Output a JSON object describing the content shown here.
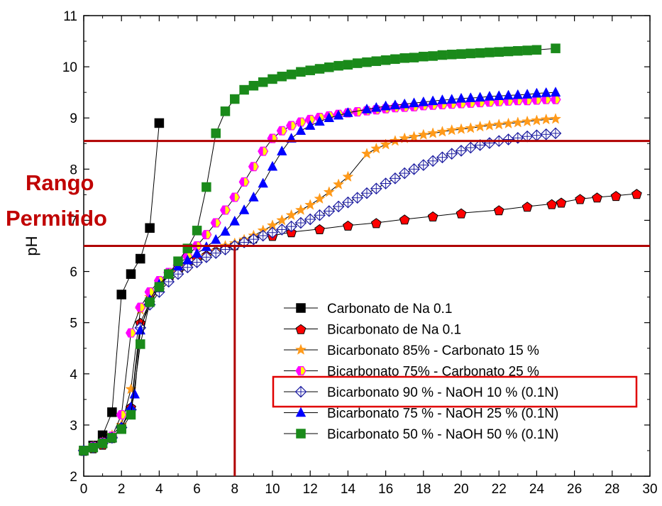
{
  "colors": {
    "range_lines": "#b00000",
    "range_text": "#c00000",
    "highlight_box": "#e00000"
  },
  "annotation": {
    "line1": "Rango",
    "line2": "Permitido"
  },
  "chart_data": {
    "type": "scatter",
    "title": "",
    "xlabel": "",
    "ylabel": "pH",
    "xlim": [
      0,
      30
    ],
    "ylim": [
      2,
      11
    ],
    "x_ticks": [
      "0",
      "2",
      "4",
      "6",
      "8",
      "10",
      "12",
      "14",
      "16",
      "18",
      "20",
      "22",
      "24",
      "26",
      "28",
      "30"
    ],
    "y_ticks": [
      "2",
      "3",
      "4",
      "5",
      "6",
      "7",
      "8",
      "9",
      "10",
      "11"
    ],
    "grid": false,
    "legend_position": "lower-right",
    "highlighted_series": "Bicarbonato 90 % - NaOH 10 % (0.1N)",
    "reference_lines": {
      "horizontal_y": [
        6.5,
        8.55
      ],
      "vertical_x": 8.0,
      "vertical_y_range": [
        2,
        6.5
      ]
    },
    "series": [
      {
        "name": "Carbonato de Na 0.1",
        "marker": "square-filled",
        "color": "#000000",
        "x": [
          0,
          0.5,
          1.0,
          1.5,
          2.0,
          2.5,
          3.0,
          3.5,
          4.0
        ],
        "y": [
          2.5,
          2.6,
          2.8,
          3.25,
          5.55,
          5.95,
          6.25,
          6.85,
          8.9
        ]
      },
      {
        "name": "Bicarbonato de Na 0.1",
        "marker": "pentagon-filled",
        "color": "#ff0000",
        "x": [
          0,
          0.5,
          1.0,
          1.5,
          2.0,
          2.5,
          3.0,
          3.5,
          4.0,
          4.5,
          5.0,
          5.5,
          6.0,
          6.5,
          7.0,
          7.5,
          8.0,
          8.5,
          9.0,
          10.0,
          11.0,
          12.5,
          14.0,
          15.5,
          17.0,
          18.5,
          20.0,
          22.0,
          23.5,
          24.8,
          25.3,
          26.3,
          27.2,
          28.2,
          29.3
        ],
        "y": [
          2.5,
          2.55,
          2.62,
          2.75,
          2.95,
          3.35,
          5.0,
          5.4,
          5.65,
          5.85,
          6.0,
          6.15,
          6.25,
          6.32,
          6.4,
          6.47,
          6.52,
          6.6,
          6.65,
          6.7,
          6.77,
          6.83,
          6.9,
          6.95,
          7.02,
          7.08,
          7.14,
          7.2,
          7.27,
          7.32,
          7.35,
          7.42,
          7.45,
          7.48,
          7.52
        ]
      },
      {
        "name": "Bicarbonato 85% - Carbonato 15 %",
        "marker": "star-filled",
        "color": "#ff9a1a",
        "x": [
          0,
          0.5,
          1.0,
          1.5,
          2.0,
          2.5,
          3.0,
          3.5,
          4.0,
          4.5,
          5.0,
          5.5,
          6.0,
          6.5,
          7.0,
          7.5,
          8.0,
          8.5,
          9.0,
          9.5,
          10.0,
          10.5,
          11.0,
          11.5,
          12.0,
          12.5,
          13.0,
          13.5,
          14.0,
          15.0,
          15.5,
          16.0,
          16.5,
          17.0,
          17.5,
          18.0,
          18.5,
          19.0,
          19.5,
          20.0,
          20.5,
          21.0,
          21.5,
          22.0,
          22.5,
          23.0,
          23.5,
          24.0,
          24.5,
          25.0
        ],
        "y": [
          2.5,
          2.58,
          2.66,
          2.8,
          3.0,
          3.7,
          5.25,
          5.5,
          5.7,
          5.85,
          5.98,
          6.1,
          6.2,
          6.3,
          6.4,
          6.5,
          6.55,
          6.62,
          6.7,
          6.8,
          6.9,
          7.0,
          7.1,
          7.2,
          7.3,
          7.42,
          7.55,
          7.7,
          7.85,
          8.3,
          8.4,
          8.48,
          8.55,
          8.6,
          8.63,
          8.67,
          8.7,
          8.73,
          8.76,
          8.78,
          8.8,
          8.83,
          8.85,
          8.87,
          8.89,
          8.91,
          8.93,
          8.95,
          8.97,
          8.98
        ]
      },
      {
        "name": "Bicarbonato 75% - Carbonato 25 %",
        "marker": "hexagon-half",
        "color": "#ff00ff",
        "color2": "#ffff00",
        "x": [
          0,
          0.5,
          1.0,
          1.5,
          2.0,
          2.5,
          3.0,
          3.5,
          4.0,
          4.5,
          5.0,
          5.5,
          6.0,
          6.5,
          7.0,
          7.5,
          8.0,
          8.5,
          9.0,
          9.5,
          10.0,
          10.5,
          11.0,
          11.5,
          12.0,
          12.5,
          13.0,
          13.5,
          14.0,
          14.5,
          15.0,
          15.5,
          16.0,
          16.5,
          17.0,
          17.5,
          18.0,
          18.5,
          19.0,
          19.5,
          20.0,
          20.5,
          21.0,
          21.5,
          22.0,
          22.5,
          23.0,
          23.5,
          24.0,
          24.5,
          25.0
        ],
        "y": [
          2.5,
          2.58,
          2.66,
          2.78,
          3.2,
          4.8,
          5.3,
          5.6,
          5.82,
          5.98,
          6.12,
          6.3,
          6.5,
          6.72,
          6.95,
          7.2,
          7.45,
          7.75,
          8.05,
          8.35,
          8.6,
          8.75,
          8.85,
          8.92,
          8.97,
          9.01,
          9.04,
          9.07,
          9.1,
          9.12,
          9.14,
          9.16,
          9.18,
          9.2,
          9.21,
          9.22,
          9.24,
          9.25,
          9.26,
          9.27,
          9.28,
          9.29,
          9.3,
          9.31,
          9.32,
          9.33,
          9.34,
          9.34,
          9.35,
          9.36,
          9.36
        ]
      },
      {
        "name": "Bicarbonato 90 % - NaOH 10 % (0.1N)",
        "marker": "diamond-cross-open",
        "color": "#1a1aa0",
        "x": [
          0,
          0.5,
          1.0,
          1.5,
          2.0,
          2.5,
          3.0,
          3.5,
          4.0,
          4.5,
          5.0,
          5.5,
          6.0,
          6.5,
          7.0,
          7.5,
          8.0,
          8.5,
          9.0,
          9.5,
          10.0,
          10.5,
          11.0,
          11.5,
          12.0,
          12.5,
          13.0,
          13.5,
          14.0,
          14.5,
          15.0,
          15.5,
          16.0,
          16.5,
          17.0,
          17.5,
          18.0,
          18.5,
          19.0,
          19.5,
          20.0,
          20.5,
          21.0,
          21.5,
          22.0,
          22.5,
          23.0,
          23.5,
          24.0,
          24.5,
          25.0
        ],
        "y": [
          2.5,
          2.56,
          2.64,
          2.75,
          2.95,
          3.3,
          4.9,
          5.35,
          5.6,
          5.8,
          5.95,
          6.08,
          6.18,
          6.28,
          6.36,
          6.43,
          6.5,
          6.57,
          6.63,
          6.7,
          6.76,
          6.82,
          6.88,
          6.95,
          7.02,
          7.1,
          7.18,
          7.27,
          7.35,
          7.44,
          7.53,
          7.62,
          7.72,
          7.82,
          7.92,
          8.0,
          8.08,
          8.16,
          8.23,
          8.3,
          8.36,
          8.42,
          8.47,
          8.51,
          8.55,
          8.58,
          8.61,
          8.64,
          8.66,
          8.68,
          8.7
        ]
      },
      {
        "name": "Bicarbonato 75 % - NaOH 25 % (0.1N)",
        "marker": "triangle-filled",
        "color": "#0000ff",
        "x": [
          0,
          0.5,
          1.0,
          1.5,
          2.0,
          2.5,
          2.7,
          3.0,
          3.5,
          4.0,
          4.5,
          5.0,
          5.5,
          6.0,
          6.5,
          7.0,
          7.5,
          8.0,
          8.5,
          9.0,
          9.5,
          10.0,
          10.5,
          11.0,
          11.5,
          12.0,
          12.5,
          13.0,
          13.5,
          14.0,
          15.0,
          15.5,
          16.0,
          16.5,
          17.0,
          17.5,
          18.0,
          18.5,
          19.0,
          19.5,
          20.0,
          20.5,
          21.0,
          21.5,
          22.0,
          22.5,
          23.0,
          23.5,
          24.0,
          24.5,
          25.0
        ],
        "y": [
          2.5,
          2.56,
          2.64,
          2.75,
          2.95,
          3.35,
          3.6,
          4.85,
          5.45,
          5.75,
          5.95,
          6.1,
          6.22,
          6.35,
          6.48,
          6.62,
          6.78,
          6.98,
          7.2,
          7.45,
          7.72,
          8.05,
          8.35,
          8.6,
          8.75,
          8.85,
          8.93,
          9.0,
          9.05,
          9.1,
          9.17,
          9.2,
          9.23,
          9.25,
          9.27,
          9.29,
          9.31,
          9.33,
          9.35,
          9.36,
          9.38,
          9.39,
          9.4,
          9.42,
          9.43,
          9.44,
          9.45,
          9.46,
          9.48,
          9.49,
          9.5
        ]
      },
      {
        "name": "Bicarbonato 50 % - NaOH 50 % (0.1N)",
        "marker": "square-filled",
        "color": "#1a8a1a",
        "x": [
          0,
          0.5,
          1.0,
          1.5,
          2.0,
          2.5,
          3.0,
          3.5,
          4.0,
          4.5,
          5.0,
          5.5,
          6.0,
          6.5,
          7.0,
          7.5,
          8.0,
          8.5,
          9.0,
          9.5,
          10.0,
          10.5,
          11.0,
          11.5,
          12.0,
          12.5,
          13.0,
          13.5,
          14.0,
          14.5,
          15.0,
          15.5,
          16.0,
          16.5,
          17.0,
          17.5,
          18.0,
          18.5,
          19.0,
          19.5,
          20.0,
          20.5,
          21.0,
          21.5,
          22.0,
          22.5,
          23.0,
          23.5,
          24.0,
          25.0
        ],
        "y": [
          2.5,
          2.56,
          2.64,
          2.75,
          2.92,
          3.2,
          4.58,
          5.4,
          5.7,
          5.95,
          6.2,
          6.45,
          6.8,
          7.65,
          8.7,
          9.13,
          9.37,
          9.55,
          9.63,
          9.7,
          9.76,
          9.81,
          9.85,
          9.9,
          9.93,
          9.96,
          9.99,
          10.02,
          10.04,
          10.07,
          10.09,
          10.11,
          10.13,
          10.15,
          10.17,
          10.18,
          10.2,
          10.21,
          10.23,
          10.24,
          10.25,
          10.26,
          10.27,
          10.28,
          10.29,
          10.3,
          10.31,
          10.32,
          10.33,
          10.36
        ]
      }
    ]
  }
}
